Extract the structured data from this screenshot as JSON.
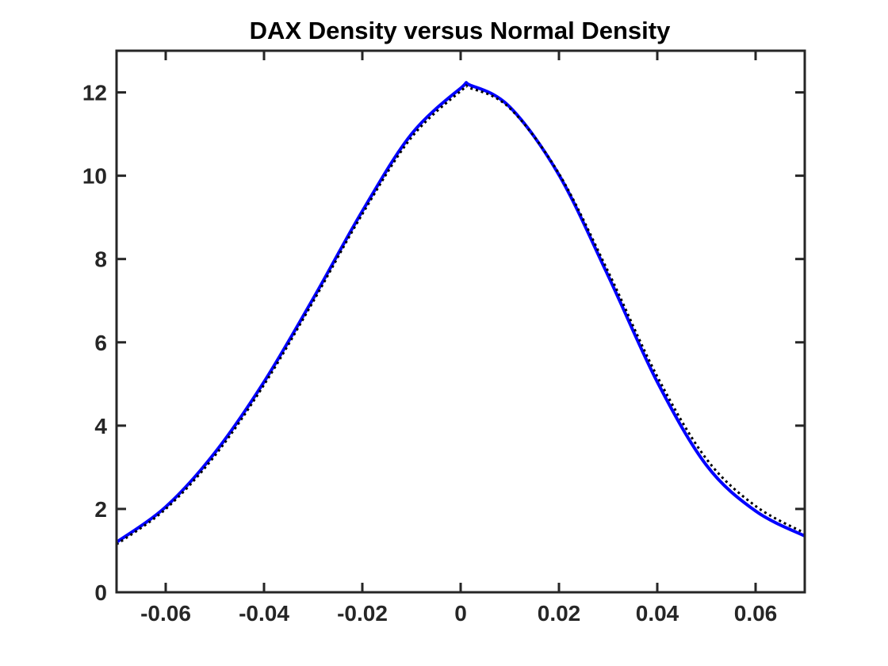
{
  "chart_data": {
    "type": "line",
    "title": "DAX Density versus Normal Density",
    "xlabel": "",
    "ylabel": "",
    "xlim": [
      -0.07,
      0.07
    ],
    "ylim": [
      0,
      13
    ],
    "grid": false,
    "x_ticks": [
      -0.06,
      -0.04,
      -0.02,
      0,
      0.02,
      0.04,
      0.06
    ],
    "x_tick_labels": [
      "-0.06",
      "-0.04",
      "-0.02",
      "0",
      "0.02",
      "0.04",
      "0.06"
    ],
    "y_ticks": [
      0,
      2,
      4,
      6,
      8,
      10,
      12
    ],
    "y_tick_labels": [
      "0",
      "2",
      "4",
      "6",
      "8",
      "10",
      "12"
    ],
    "series": [
      {
        "color": "#0000ff",
        "style": "solid",
        "x": [
          -0.07,
          -0.06,
          -0.05,
          -0.04,
          -0.03,
          -0.02,
          -0.01,
          0.0,
          0.002,
          0.01,
          0.02,
          0.03,
          0.04,
          0.05,
          0.06,
          0.07
        ],
        "y": [
          1.2,
          2.05,
          3.35,
          5.05,
          7.05,
          9.15,
          11.0,
          12.1,
          12.17,
          11.65,
          10.02,
          7.6,
          5.05,
          3.05,
          1.95,
          1.35
        ]
      },
      {
        "color": "#000000",
        "style": "dotted",
        "x": [
          -0.07,
          -0.06,
          -0.05,
          -0.04,
          -0.03,
          -0.02,
          -0.01,
          0.0,
          0.002,
          0.01,
          0.02,
          0.03,
          0.04,
          0.05,
          0.06,
          0.07
        ],
        "y": [
          1.15,
          2.0,
          3.28,
          4.98,
          6.98,
          9.08,
          10.92,
          12.03,
          12.1,
          11.62,
          10.05,
          7.7,
          5.18,
          3.2,
          2.07,
          1.42
        ]
      }
    ]
  }
}
